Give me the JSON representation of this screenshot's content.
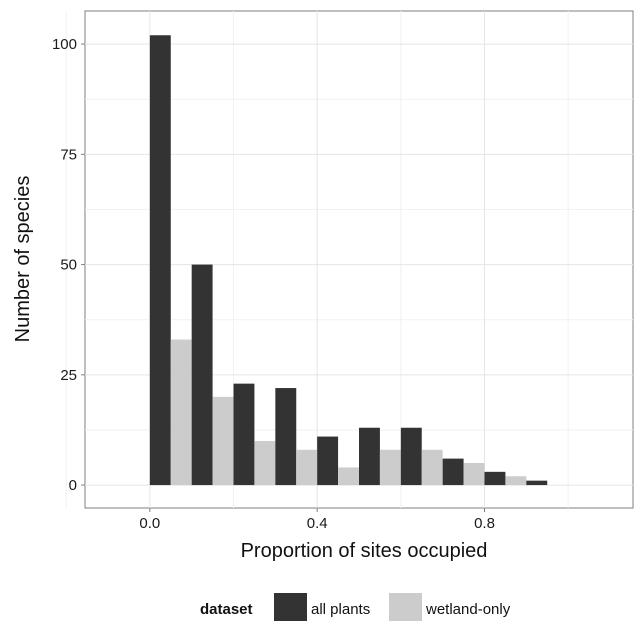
{
  "chart_data": {
    "type": "bar",
    "xlabel": "Proportion of sites occupied",
    "ylabel": "Number of species",
    "xlim": [
      -0.155,
      1.155
    ],
    "ylim": [
      -5.2,
      107.5
    ],
    "x_ticks": [
      0.0,
      0.4,
      0.8
    ],
    "x_tick_labels": [
      "0.0",
      "0.4",
      "0.8"
    ],
    "y_ticks": [
      0,
      25,
      50,
      75,
      100
    ],
    "y_tick_labels": [
      "0",
      "25",
      "50",
      "75",
      "100"
    ],
    "bin_width": 0.1,
    "bin_starts": [
      0.0,
      0.1,
      0.2,
      0.3,
      0.4,
      0.5,
      0.6,
      0.7,
      0.8,
      0.9
    ],
    "grid": true,
    "legend_title": "dataset",
    "legend_position": "bottom",
    "series": [
      {
        "name": "all plants",
        "color": "#333333",
        "values": [
          102,
          50,
          23,
          22,
          11,
          13,
          13,
          6,
          3,
          1
        ]
      },
      {
        "name": "wetland-only",
        "color": "#cccccc",
        "values": [
          33,
          20,
          10,
          8,
          4,
          8,
          8,
          5,
          2,
          0
        ]
      }
    ]
  }
}
